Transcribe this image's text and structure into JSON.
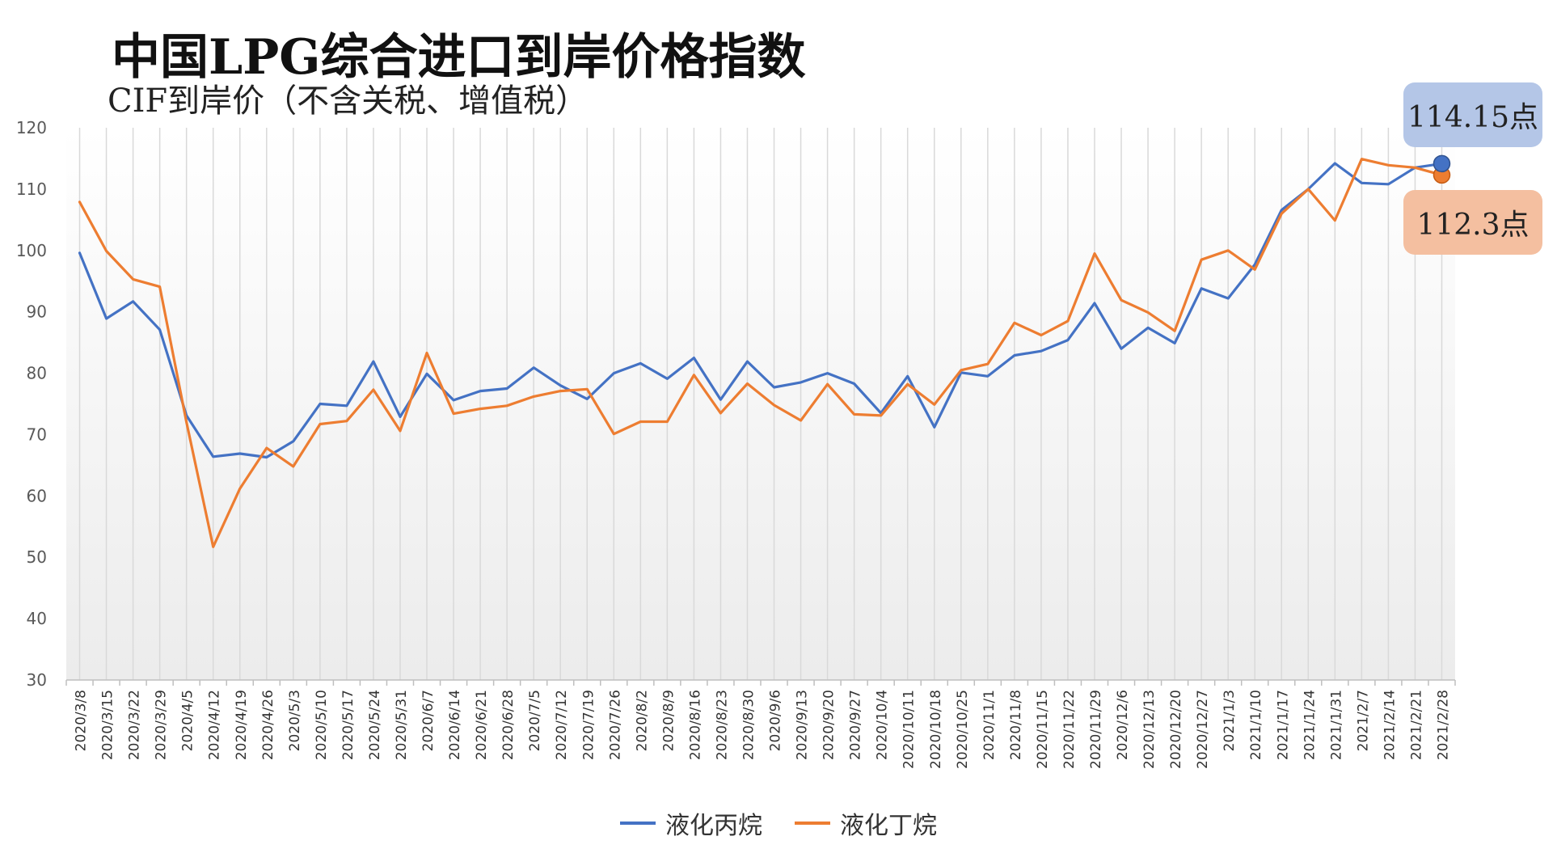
{
  "chart_data": {
    "type": "line",
    "title": "中国LPG综合进口到岸价格指数",
    "subtitle": "CIF到岸价（不含关税、增值税）",
    "xlabel": "",
    "ylabel": "",
    "ylim": [
      30,
      120
    ],
    "yticks": [
      "30",
      "40",
      "50",
      "60",
      "70",
      "80",
      "90",
      "100",
      "110",
      "120"
    ],
    "grid": "vertical",
    "legend": "bottom",
    "categories": [
      "2020/3/8",
      "2020/3/15",
      "2020/3/22",
      "2020/3/29",
      "2020/4/5",
      "2020/4/12",
      "2020/4/19",
      "2020/4/26",
      "2020/5/3",
      "2020/5/10",
      "2020/5/17",
      "2020/5/24",
      "2020/5/31",
      "2020/6/7",
      "2020/6/14",
      "2020/6/21",
      "2020/6/28",
      "2020/7/5",
      "2020/7/12",
      "2020/7/19",
      "2020/7/26",
      "2020/8/2",
      "2020/8/9",
      "2020/8/16",
      "2020/8/23",
      "2020/8/30",
      "2020/9/6",
      "2020/9/13",
      "2020/9/20",
      "2020/9/27",
      "2020/10/4",
      "2020/10/11",
      "2020/10/18",
      "2020/10/25",
      "2020/11/1",
      "2020/11/8",
      "2020/11/15",
      "2020/11/22",
      "2020/11/29",
      "2020/12/6",
      "2020/12/13",
      "2020/12/20",
      "2020/12/27",
      "2021/1/3",
      "2021/1/10",
      "2021/1/17",
      "2021/1/24",
      "2021/1/31",
      "2021/2/7",
      "2021/2/14",
      "2021/2/21",
      "2021/2/28"
    ],
    "series": [
      {
        "name": "液化丙烷",
        "color": "#4472c4",
        "values": [
          99.6,
          88.9,
          91.7,
          87.1,
          73.1,
          66.4,
          66.9,
          66.3,
          68.9,
          75.0,
          74.7,
          81.9,
          72.9,
          79.9,
          75.6,
          77.1,
          77.5,
          80.9,
          78.0,
          75.8,
          80.0,
          81.6,
          79.1,
          82.5,
          75.7,
          81.9,
          77.7,
          78.5,
          80.0,
          78.3,
          73.5,
          79.5,
          71.2,
          80.1,
          79.5,
          82.9,
          83.6,
          85.4,
          91.4,
          84.0,
          87.4,
          84.9,
          93.8,
          92.2,
          97.7,
          106.6,
          110.0,
          114.2,
          111.0,
          110.8,
          113.5,
          114.15
        ]
      },
      {
        "name": "液化丁烷",
        "color": "#ed7d31",
        "values": [
          107.9,
          99.9,
          95.3,
          94.1,
          72.0,
          51.7,
          61.2,
          67.8,
          64.8,
          71.7,
          72.2,
          77.3,
          70.6,
          83.3,
          73.4,
          74.2,
          74.7,
          76.2,
          77.1,
          77.4,
          70.1,
          72.1,
          72.1,
          79.7,
          73.5,
          78.3,
          74.8,
          72.3,
          78.2,
          73.3,
          73.1,
          78.2,
          74.9,
          80.5,
          81.5,
          88.2,
          86.2,
          88.5,
          99.5,
          91.9,
          89.9,
          86.9,
          98.5,
          100.0,
          96.9,
          106.0,
          110.0,
          104.9,
          114.9,
          113.9,
          113.5,
          112.3
        ]
      }
    ],
    "callouts": [
      {
        "series": "液化丙烷",
        "label": "114.15点"
      },
      {
        "series": "液化丁烷",
        "label": "112.3点"
      }
    ]
  }
}
